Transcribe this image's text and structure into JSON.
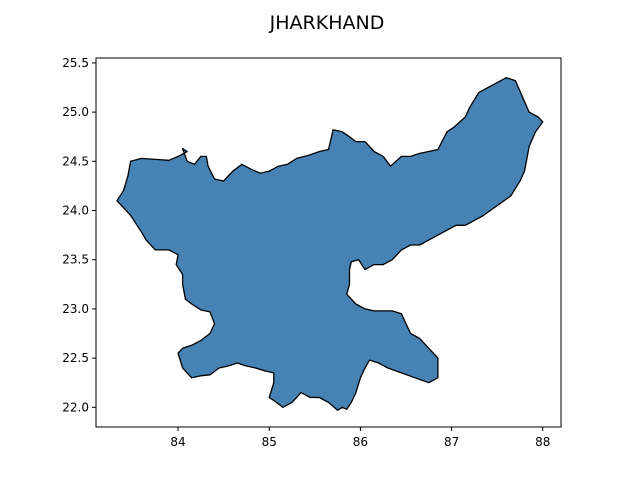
{
  "title": "JHARKHAND",
  "colors": {
    "fill": "#4682b4",
    "edge": "#000000",
    "axes": "#000000",
    "background": "#ffffff"
  },
  "chart_data": {
    "type": "map",
    "region": "JHARKHAND",
    "xlim": [
      83.1,
      88.2
    ],
    "ylim": [
      21.8,
      25.55
    ],
    "x_ticks": [
      {
        "value": 84,
        "label": "84"
      },
      {
        "value": 85,
        "label": "85"
      },
      {
        "value": 86,
        "label": "86"
      },
      {
        "value": 87,
        "label": "87"
      },
      {
        "value": 88,
        "label": "88"
      }
    ],
    "y_ticks": [
      {
        "value": 22.0,
        "label": "22.0"
      },
      {
        "value": 22.5,
        "label": "22.5"
      },
      {
        "value": 23.0,
        "label": "23.0"
      },
      {
        "value": 23.5,
        "label": "23.5"
      },
      {
        "value": 24.0,
        "label": "24.0"
      },
      {
        "value": 24.5,
        "label": "24.5"
      },
      {
        "value": 25.0,
        "label": "25.0"
      },
      {
        "value": 25.5,
        "label": "25.5"
      }
    ],
    "outline": [
      [
        83.33,
        24.1
      ],
      [
        83.4,
        24.2
      ],
      [
        83.45,
        24.35
      ],
      [
        83.48,
        24.5
      ],
      [
        83.6,
        24.53
      ],
      [
        83.75,
        24.52
      ],
      [
        83.9,
        24.51
      ],
      [
        84.0,
        24.55
      ],
      [
        84.1,
        24.6
      ],
      [
        84.05,
        24.63
      ],
      [
        84.1,
        24.5
      ],
      [
        84.18,
        24.47
      ],
      [
        84.25,
        24.55
      ],
      [
        84.31,
        24.55
      ],
      [
        84.33,
        24.45
      ],
      [
        84.4,
        24.32
      ],
      [
        84.5,
        24.3
      ],
      [
        84.6,
        24.4
      ],
      [
        84.7,
        24.47
      ],
      [
        84.8,
        24.42
      ],
      [
        84.9,
        24.38
      ],
      [
        85.0,
        24.4
      ],
      [
        85.1,
        24.45
      ],
      [
        85.2,
        24.47
      ],
      [
        85.3,
        24.53
      ],
      [
        85.43,
        24.56
      ],
      [
        85.55,
        24.6
      ],
      [
        85.65,
        24.62
      ],
      [
        85.7,
        24.82
      ],
      [
        85.8,
        24.8
      ],
      [
        85.85,
        24.77
      ],
      [
        85.95,
        24.7
      ],
      [
        86.05,
        24.7
      ],
      [
        86.15,
        24.6
      ],
      [
        86.25,
        24.55
      ],
      [
        86.33,
        24.45
      ],
      [
        86.45,
        24.55
      ],
      [
        86.55,
        24.55
      ],
      [
        86.65,
        24.58
      ],
      [
        86.75,
        24.6
      ],
      [
        86.85,
        24.62
      ],
      [
        86.95,
        24.8
      ],
      [
        87.03,
        24.85
      ],
      [
        87.15,
        24.95
      ],
      [
        87.2,
        25.05
      ],
      [
        87.3,
        25.2
      ],
      [
        87.4,
        25.25
      ],
      [
        87.5,
        25.3
      ],
      [
        87.6,
        25.35
      ],
      [
        87.7,
        25.32
      ],
      [
        87.78,
        25.15
      ],
      [
        87.85,
        25.0
      ],
      [
        87.95,
        24.95
      ],
      [
        88.0,
        24.9
      ],
      [
        87.92,
        24.8
      ],
      [
        87.85,
        24.65
      ],
      [
        87.82,
        24.5
      ],
      [
        87.8,
        24.4
      ],
      [
        87.75,
        24.3
      ],
      [
        87.65,
        24.15
      ],
      [
        87.5,
        24.05
      ],
      [
        87.35,
        23.95
      ],
      [
        87.25,
        23.9
      ],
      [
        87.15,
        23.85
      ],
      [
        87.05,
        23.85
      ],
      [
        86.95,
        23.8
      ],
      [
        86.85,
        23.75
      ],
      [
        86.75,
        23.7
      ],
      [
        86.65,
        23.65
      ],
      [
        86.55,
        23.65
      ],
      [
        86.45,
        23.6
      ],
      [
        86.35,
        23.5
      ],
      [
        86.25,
        23.45
      ],
      [
        86.15,
        23.45
      ],
      [
        86.05,
        23.4
      ],
      [
        85.98,
        23.5
      ],
      [
        85.9,
        23.48
      ],
      [
        85.88,
        23.4
      ],
      [
        85.88,
        23.25
      ],
      [
        85.85,
        23.15
      ],
      [
        85.95,
        23.05
      ],
      [
        86.05,
        23.0
      ],
      [
        86.15,
        22.98
      ],
      [
        86.25,
        22.98
      ],
      [
        86.35,
        22.98
      ],
      [
        86.45,
        22.95
      ],
      [
        86.5,
        22.85
      ],
      [
        86.55,
        22.75
      ],
      [
        86.65,
        22.7
      ],
      [
        86.75,
        22.6
      ],
      [
        86.85,
        22.5
      ],
      [
        86.85,
        22.3
      ],
      [
        86.75,
        22.25
      ],
      [
        86.6,
        22.3
      ],
      [
        86.45,
        22.35
      ],
      [
        86.3,
        22.4
      ],
      [
        86.2,
        22.45
      ],
      [
        86.1,
        22.48
      ],
      [
        86.05,
        22.4
      ],
      [
        86.0,
        22.3
      ],
      [
        85.95,
        22.15
      ],
      [
        85.9,
        22.05
      ],
      [
        85.85,
        21.98
      ],
      [
        85.8,
        22.0
      ],
      [
        85.75,
        21.97
      ],
      [
        85.65,
        22.05
      ],
      [
        85.55,
        22.1
      ],
      [
        85.45,
        22.1
      ],
      [
        85.35,
        22.15
      ],
      [
        85.25,
        22.05
      ],
      [
        85.15,
        22.0
      ],
      [
        85.05,
        22.07
      ],
      [
        85.0,
        22.1
      ],
      [
        85.05,
        22.25
      ],
      [
        85.05,
        22.35
      ],
      [
        84.95,
        22.37
      ],
      [
        84.85,
        22.4
      ],
      [
        84.75,
        22.42
      ],
      [
        84.65,
        22.45
      ],
      [
        84.55,
        22.42
      ],
      [
        84.45,
        22.4
      ],
      [
        84.35,
        22.33
      ],
      [
        84.25,
        22.32
      ],
      [
        84.15,
        22.3
      ],
      [
        84.05,
        22.4
      ],
      [
        84.0,
        22.55
      ],
      [
        84.05,
        22.6
      ],
      [
        84.15,
        22.63
      ],
      [
        84.25,
        22.68
      ],
      [
        84.35,
        22.75
      ],
      [
        84.4,
        22.85
      ],
      [
        84.35,
        22.97
      ],
      [
        84.25,
        22.99
      ],
      [
        84.15,
        23.05
      ],
      [
        84.08,
        23.1
      ],
      [
        84.05,
        23.25
      ],
      [
        84.05,
        23.35
      ],
      [
        83.98,
        23.45
      ],
      [
        84.0,
        23.55
      ],
      [
        83.9,
        23.6
      ],
      [
        83.75,
        23.6
      ],
      [
        83.65,
        23.7
      ],
      [
        83.6,
        23.78
      ],
      [
        83.55,
        23.85
      ],
      [
        83.48,
        23.95
      ],
      [
        83.4,
        24.03
      ],
      [
        83.33,
        24.1
      ]
    ]
  }
}
